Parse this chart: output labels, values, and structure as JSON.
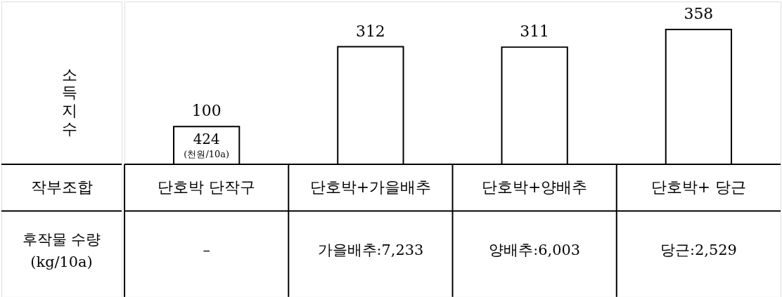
{
  "chart_data": {
    "type": "bar",
    "ylabel": "소득지수",
    "xlabel": "작부조합",
    "categories": [
      "단호박 단작구",
      "단호박+가을배추",
      "단호박+양배추",
      "단호박+ 당근"
    ],
    "values": [
      100,
      312,
      311,
      358
    ],
    "color": "#ffffff",
    "data_labels": true,
    "annotations": [
      "424",
      "(천원/10a)",
      "후작물 수량\n(kg/10a)",
      "–",
      "가을배추:7,233",
      "양배추:6,003",
      "당근:2,529"
    ]
  }
}
